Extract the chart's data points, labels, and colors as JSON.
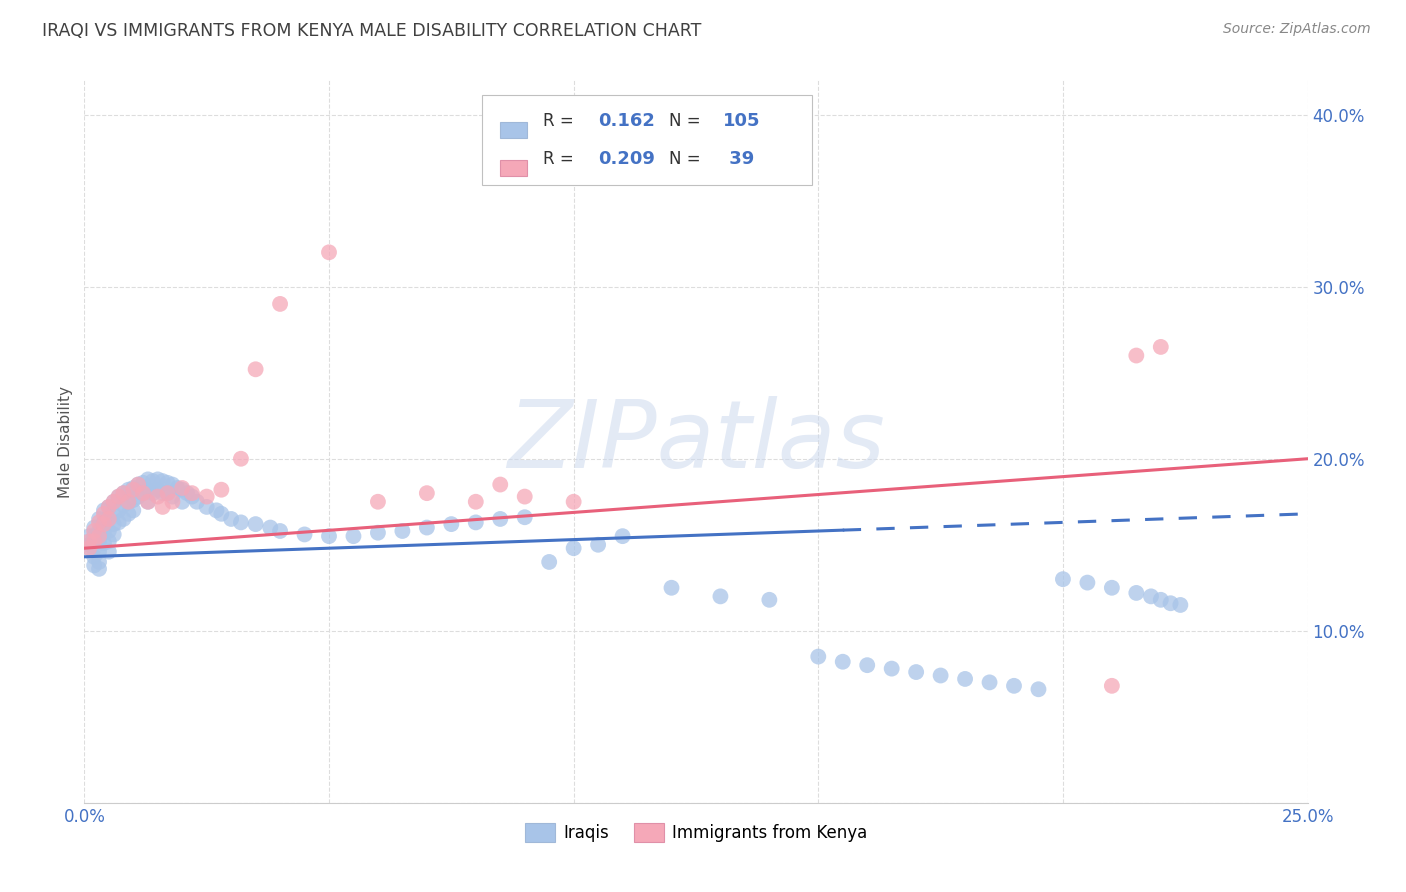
{
  "title": "IRAQI VS IMMIGRANTS FROM KENYA MALE DISABILITY CORRELATION CHART",
  "source": "Source: ZipAtlas.com",
  "ylabel": "Male Disability",
  "xlim": [
    0.0,
    0.25
  ],
  "ylim": [
    0.0,
    0.42
  ],
  "series1_label": "Iraqis",
  "series2_label": "Immigrants from Kenya",
  "series1_color": "#a8c4e8",
  "series2_color": "#f5a8b8",
  "series1_R": "0.162",
  "series1_N": "105",
  "series2_R": "0.209",
  "series2_N": "39",
  "series1_line_color": "#4472c4",
  "series2_line_color": "#e8607a",
  "series1_line_solid_end": 0.155,
  "series1_line_y0": 0.143,
  "series1_line_y1": 0.168,
  "series2_line_solid_end": 0.25,
  "series2_line_y0": 0.148,
  "series2_line_y1": 0.2,
  "watermark_text": "ZIPatlas",
  "background_color": "#ffffff",
  "grid_color": "#dddddd",
  "title_color": "#404040",
  "source_color": "#888888",
  "tick_color": "#4472c4",
  "ylabel_color": "#555555",
  "legend_text_color": "#4472c4",
  "legend_R_label_color": "#333333",
  "s1_x": [
    0.001,
    0.001,
    0.001,
    0.002,
    0.002,
    0.002,
    0.002,
    0.002,
    0.003,
    0.003,
    0.003,
    0.003,
    0.003,
    0.003,
    0.004,
    0.004,
    0.004,
    0.004,
    0.005,
    0.005,
    0.005,
    0.005,
    0.005,
    0.006,
    0.006,
    0.006,
    0.006,
    0.007,
    0.007,
    0.007,
    0.008,
    0.008,
    0.008,
    0.009,
    0.009,
    0.009,
    0.01,
    0.01,
    0.01,
    0.011,
    0.011,
    0.012,
    0.012,
    0.013,
    0.013,
    0.013,
    0.014,
    0.014,
    0.015,
    0.015,
    0.016,
    0.016,
    0.017,
    0.017,
    0.018,
    0.018,
    0.019,
    0.02,
    0.02,
    0.021,
    0.022,
    0.023,
    0.025,
    0.027,
    0.028,
    0.03,
    0.032,
    0.035,
    0.038,
    0.04,
    0.045,
    0.05,
    0.055,
    0.06,
    0.065,
    0.07,
    0.075,
    0.08,
    0.085,
    0.09,
    0.095,
    0.1,
    0.105,
    0.11,
    0.12,
    0.13,
    0.14,
    0.15,
    0.155,
    0.16,
    0.165,
    0.17,
    0.175,
    0.18,
    0.185,
    0.19,
    0.195,
    0.2,
    0.205,
    0.21,
    0.215,
    0.218,
    0.22,
    0.222,
    0.224
  ],
  "s1_y": [
    0.15,
    0.155,
    0.148,
    0.16,
    0.155,
    0.148,
    0.143,
    0.138,
    0.165,
    0.158,
    0.152,
    0.146,
    0.14,
    0.136,
    0.17,
    0.163,
    0.157,
    0.151,
    0.172,
    0.165,
    0.158,
    0.152,
    0.146,
    0.175,
    0.168,
    0.162,
    0.156,
    0.178,
    0.17,
    0.163,
    0.18,
    0.173,
    0.165,
    0.182,
    0.175,
    0.168,
    0.183,
    0.176,
    0.17,
    0.185,
    0.178,
    0.186,
    0.18,
    0.188,
    0.182,
    0.175,
    0.187,
    0.18,
    0.188,
    0.182,
    0.187,
    0.18,
    0.186,
    0.18,
    0.185,
    0.178,
    0.183,
    0.182,
    0.175,
    0.18,
    0.178,
    0.175,
    0.172,
    0.17,
    0.168,
    0.165,
    0.163,
    0.162,
    0.16,
    0.158,
    0.156,
    0.155,
    0.155,
    0.157,
    0.158,
    0.16,
    0.162,
    0.163,
    0.165,
    0.166,
    0.14,
    0.148,
    0.15,
    0.155,
    0.125,
    0.12,
    0.118,
    0.085,
    0.082,
    0.08,
    0.078,
    0.076,
    0.074,
    0.072,
    0.07,
    0.068,
    0.066,
    0.13,
    0.128,
    0.125,
    0.122,
    0.12,
    0.118,
    0.116,
    0.115
  ],
  "s2_x": [
    0.001,
    0.001,
    0.002,
    0.002,
    0.003,
    0.003,
    0.004,
    0.004,
    0.005,
    0.005,
    0.006,
    0.007,
    0.008,
    0.009,
    0.01,
    0.011,
    0.012,
    0.013,
    0.015,
    0.016,
    0.017,
    0.018,
    0.02,
    0.022,
    0.025,
    0.028,
    0.032,
    0.035,
    0.04,
    0.05,
    0.06,
    0.07,
    0.08,
    0.085,
    0.09,
    0.1,
    0.22,
    0.215,
    0.21
  ],
  "s2_y": [
    0.152,
    0.148,
    0.158,
    0.152,
    0.163,
    0.155,
    0.168,
    0.162,
    0.172,
    0.165,
    0.175,
    0.178,
    0.18,
    0.175,
    0.182,
    0.185,
    0.18,
    0.175,
    0.178,
    0.172,
    0.18,
    0.175,
    0.183,
    0.18,
    0.178,
    0.182,
    0.2,
    0.252,
    0.29,
    0.32,
    0.175,
    0.18,
    0.175,
    0.185,
    0.178,
    0.175,
    0.265,
    0.26,
    0.068
  ]
}
